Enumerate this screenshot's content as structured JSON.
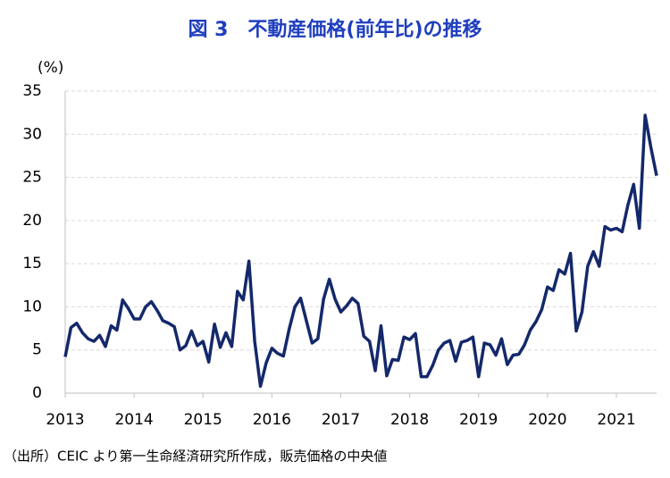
{
  "chart_data": {
    "type": "line",
    "title": "図 3　不動産価格(前年比)の推移",
    "y_label": "(%)",
    "note": "（出所）CEIC より第一生命経済研究所作成，販売価格の中央値",
    "categories": [
      "2013",
      null,
      null,
      null,
      null,
      null,
      null,
      null,
      null,
      null,
      null,
      null,
      "2014",
      null,
      null,
      null,
      null,
      null,
      null,
      null,
      null,
      null,
      null,
      null,
      "2015",
      null,
      null,
      null,
      null,
      null,
      null,
      null,
      null,
      null,
      null,
      null,
      "2016",
      null,
      null,
      null,
      null,
      null,
      null,
      null,
      null,
      null,
      null,
      null,
      "2017",
      null,
      null,
      null,
      null,
      null,
      null,
      null,
      null,
      null,
      null,
      null,
      "2018",
      null,
      null,
      null,
      null,
      null,
      null,
      null,
      null,
      null,
      null,
      null,
      "2019",
      null,
      null,
      null,
      null,
      null,
      null,
      null,
      null,
      null,
      null,
      null,
      "2020",
      null,
      null,
      null,
      null,
      null,
      null,
      null,
      null,
      null,
      null,
      null,
      "2021",
      null,
      null,
      null,
      null,
      null,
      null,
      null
    ],
    "series": [
      {
        "color": "#14286b",
        "values": [
          4.2,
          7.6,
          8.1,
          7.0,
          6.3,
          6.0,
          6.7,
          5.4,
          7.8,
          7.3,
          10.8,
          9.8,
          8.6,
          8.6,
          10.0,
          10.6,
          9.6,
          8.4,
          8.1,
          7.7,
          5.0,
          5.5,
          7.2,
          5.5,
          6.0,
          3.6,
          8.0,
          5.3,
          7.0,
          5.4,
          11.8,
          10.8,
          15.3,
          6.0,
          0.8,
          3.5,
          5.2,
          4.6,
          4.3,
          7.4,
          10.0,
          11.0,
          8.4,
          5.8,
          6.3,
          10.9,
          13.2,
          10.9,
          9.4,
          10.1,
          11.0,
          10.4,
          6.6,
          6.0,
          2.6,
          7.8,
          2.0,
          3.9,
          3.8,
          6.5,
          6.2,
          6.9,
          1.9,
          1.9,
          3.2,
          5.0,
          5.8,
          6.1,
          3.7,
          5.9,
          6.1,
          6.5,
          1.9,
          5.8,
          5.6,
          4.4,
          6.3,
          3.3,
          4.4,
          4.5,
          5.6,
          7.3,
          8.3,
          9.7,
          12.3,
          11.9,
          14.3,
          13.8,
          16.2,
          7.2,
          9.4,
          14.7,
          16.4,
          14.7,
          19.3,
          18.9,
          19.1,
          18.7,
          21.8,
          24.2,
          19.1,
          32.2,
          28.5,
          25.2
        ]
      }
    ],
    "ylim": [
      0,
      35
    ],
    "yticks": [
      0,
      5,
      10,
      15,
      20,
      25,
      30,
      35
    ],
    "grid": true
  }
}
